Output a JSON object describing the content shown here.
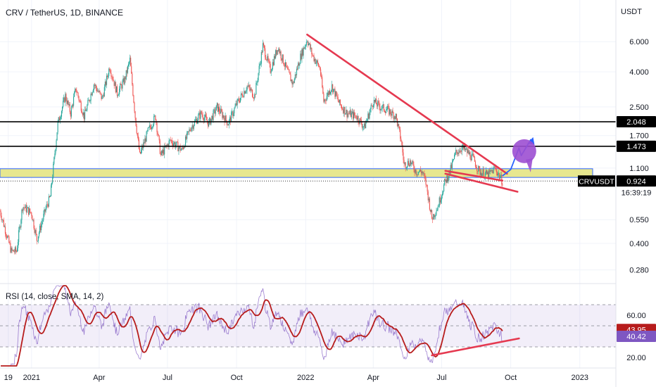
{
  "chart_data": [
    {
      "type": "candlestick",
      "title": "CRV / TetherUS, 1D, BINANCE",
      "currency": "USDT",
      "y_scale": "log",
      "ylim": [
        0.24,
        10.5
      ],
      "y_ticks": [
        {
          "value": 6.0,
          "label": "6.000"
        },
        {
          "value": 4.0,
          "label": "4.000"
        },
        {
          "value": 2.5,
          "label": "2.500"
        },
        {
          "value": 1.7,
          "label": "1.700"
        },
        {
          "value": 1.1,
          "label": "1.100"
        },
        {
          "value": 0.55,
          "label": "0.550"
        },
        {
          "value": 0.4,
          "label": "0.400"
        },
        {
          "value": 0.28,
          "label": "0.280"
        }
      ],
      "x_labels": [
        {
          "date": "2020-12-01",
          "label": "19"
        },
        {
          "date": "2021-01-01",
          "label": "2021"
        },
        {
          "date": "2021-04-01",
          "label": "Apr"
        },
        {
          "date": "2021-07-01",
          "label": "Jul"
        },
        {
          "date": "2021-10-01",
          "label": "Oct"
        },
        {
          "date": "2022-01-01",
          "label": "2022"
        },
        {
          "date": "2022-04-01",
          "label": "Apr"
        },
        {
          "date": "2022-07-01",
          "label": "Jul"
        },
        {
          "date": "2022-10-01",
          "label": "Oct"
        },
        {
          "date": "2023-01-01",
          "label": "2023"
        }
      ],
      "x_range": [
        "2020-11-20",
        "2023-02-18"
      ],
      "last_date": "2022-09-20",
      "price_path": [
        [
          "2020-11-20",
          0.62
        ],
        [
          "2020-12-05",
          0.36
        ],
        [
          "2020-12-12",
          0.36
        ],
        [
          "2020-12-20",
          0.66
        ],
        [
          "2021-01-01",
          0.6
        ],
        [
          "2021-01-08",
          0.42
        ],
        [
          "2021-01-20",
          0.64
        ],
        [
          "2021-01-26",
          0.75
        ],
        [
          "2021-02-05",
          2.0
        ],
        [
          "2021-02-15",
          2.9
        ],
        [
          "2021-02-22",
          2.3
        ],
        [
          "2021-03-01",
          3.2
        ],
        [
          "2021-03-12",
          2.2
        ],
        [
          "2021-03-25",
          3.4
        ],
        [
          "2021-04-05",
          2.8
        ],
        [
          "2021-04-15",
          4.3
        ],
        [
          "2021-04-25",
          3.0
        ],
        [
          "2021-05-05",
          3.6
        ],
        [
          "2021-05-12",
          4.7
        ],
        [
          "2021-05-19",
          2.2
        ],
        [
          "2021-05-25",
          1.3
        ],
        [
          "2021-06-05",
          1.8
        ],
        [
          "2021-06-15",
          2.2
        ],
        [
          "2021-06-22",
          1.3
        ],
        [
          "2021-07-05",
          1.6
        ],
        [
          "2021-07-20",
          1.4
        ],
        [
          "2021-08-01",
          1.9
        ],
        [
          "2021-08-15",
          2.3
        ],
        [
          "2021-08-25",
          2.0
        ],
        [
          "2021-09-05",
          2.5
        ],
        [
          "2021-09-20",
          2.0
        ],
        [
          "2021-10-01",
          2.6
        ],
        [
          "2021-10-15",
          3.3
        ],
        [
          "2021-10-25",
          2.9
        ],
        [
          "2021-11-05",
          5.7
        ],
        [
          "2021-11-15",
          4.1
        ],
        [
          "2021-11-25",
          5.6
        ],
        [
          "2021-12-05",
          4.3
        ],
        [
          "2021-12-15",
          3.4
        ],
        [
          "2021-12-25",
          4.9
        ],
        [
          "2022-01-03",
          6.2
        ],
        [
          "2022-01-10",
          5.0
        ],
        [
          "2022-01-20",
          4.2
        ],
        [
          "2022-01-25",
          2.7
        ],
        [
          "2022-02-05",
          3.3
        ],
        [
          "2022-02-15",
          2.6
        ],
        [
          "2022-02-25",
          2.3
        ],
        [
          "2022-03-10",
          2.2
        ],
        [
          "2022-03-20",
          1.9
        ],
        [
          "2022-04-01",
          2.7
        ],
        [
          "2022-04-10",
          2.5
        ],
        [
          "2022-04-20",
          2.4
        ],
        [
          "2022-05-01",
          2.2
        ],
        [
          "2022-05-08",
          1.6
        ],
        [
          "2022-05-12",
          1.15
        ],
        [
          "2022-05-20",
          1.2
        ],
        [
          "2022-05-28",
          1.05
        ],
        [
          "2022-06-05",
          1.05
        ],
        [
          "2022-06-10",
          0.9
        ],
        [
          "2022-06-18",
          0.56
        ],
        [
          "2022-06-26",
          0.66
        ],
        [
          "2022-07-05",
          0.9
        ],
        [
          "2022-07-12",
          1.05
        ],
        [
          "2022-07-20",
          1.35
        ],
        [
          "2022-07-28",
          1.45
        ],
        [
          "2022-08-05",
          1.35
        ],
        [
          "2022-08-12",
          1.25
        ],
        [
          "2022-08-20",
          1.05
        ],
        [
          "2022-09-01",
          1.0
        ],
        [
          "2022-09-10",
          1.1
        ],
        [
          "2022-09-20",
          0.92
        ]
      ],
      "horizontal_levels": [
        {
          "value": 2.048,
          "label": "2.048",
          "color": "#000000"
        },
        {
          "value": 1.473,
          "label": "1.473",
          "color": "#000000"
        }
      ],
      "support_zone": {
        "low": 0.97,
        "high": 1.09,
        "color": "#e6e68a"
      },
      "current_price": {
        "symbol": "CRVUSDT",
        "label": "0.924",
        "value": 0.924,
        "countdown": "16:39:19"
      },
      "trendlines": [
        {
          "name": "descending resistance",
          "color": "#e53950",
          "from": [
            "2022-01-03",
            6.6
          ],
          "to": [
            "2022-09-26",
            1.02
          ]
        },
        {
          "name": "falling wedge upper",
          "color": "#e53950",
          "from": [
            "2022-07-06",
            1.06
          ],
          "to": [
            "2022-09-20",
            0.93
          ]
        },
        {
          "name": "falling wedge lower",
          "color": "#e53950",
          "from": [
            "2022-07-06",
            1.02
          ],
          "to": [
            "2022-10-10",
            0.8
          ]
        }
      ],
      "projection": {
        "color": "#2962ff",
        "points": [
          [
            "2022-09-20",
            0.99
          ],
          [
            "2022-10-01",
            1.08
          ],
          [
            "2022-10-12",
            1.44
          ],
          [
            "2022-10-15",
            1.3
          ],
          [
            "2022-10-28",
            1.62
          ]
        ]
      },
      "marker": {
        "date": "2022-10-19",
        "value": 1.38,
        "color": "#9c4fd1"
      },
      "colors": {
        "up": "#26a69a",
        "down": "#ef5350"
      }
    },
    {
      "type": "line",
      "title": "RSI (14, close, SMA, 14, 2)",
      "ylim": [
        10,
        90
      ],
      "y_ticks": [
        {
          "value": 60,
          "label": "60.00"
        },
        {
          "value": 20,
          "label": "20.00"
        }
      ],
      "bands": {
        "upper": 70,
        "middle": 50,
        "lower": 30
      },
      "series": [
        {
          "name": "RSI",
          "color": "#7e57c2",
          "last": "40.42"
        },
        {
          "name": "RSI-based MA",
          "color": "#b71c1c",
          "last": "43.95"
        }
      ],
      "trendline": {
        "color": "#e53950",
        "from": [
          "2022-06-18",
          22
        ],
        "to": [
          "2022-10-12",
          38
        ]
      }
    }
  ]
}
